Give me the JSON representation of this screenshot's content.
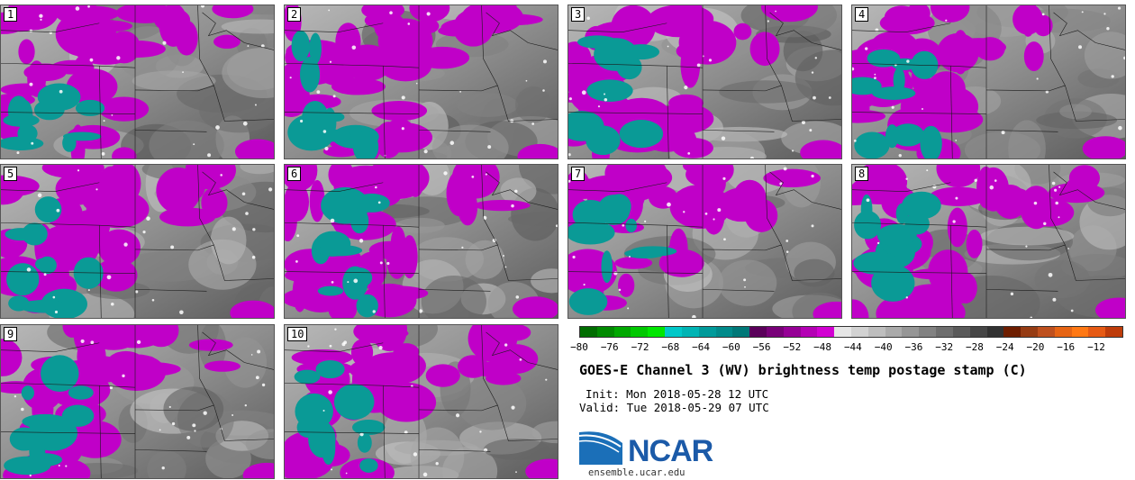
{
  "panels": [
    {
      "label": "1"
    },
    {
      "label": "2"
    },
    {
      "label": "3"
    },
    {
      "label": "4"
    },
    {
      "label": "5"
    },
    {
      "label": "6"
    },
    {
      "label": "7"
    },
    {
      "label": "8"
    },
    {
      "label": "9"
    },
    {
      "label": "10"
    }
  ],
  "colorbar": {
    "colors": [
      "#006d00",
      "#008a00",
      "#00a800",
      "#00c800",
      "#00e600",
      "#00c8c8",
      "#00b4b4",
      "#009a9a",
      "#008a8a",
      "#007878",
      "#5a005a",
      "#780078",
      "#960096",
      "#b400b4",
      "#d200d2",
      "#e6e6e6",
      "#d2d2d2",
      "#bebebe",
      "#aaaaaa",
      "#969696",
      "#828282",
      "#6e6e6e",
      "#5a5a5a",
      "#464646",
      "#323232",
      "#6e1e00",
      "#963c14",
      "#be501e",
      "#e66414",
      "#ff7814",
      "#e65a14",
      "#be3c0a"
    ],
    "ticks": [
      "−80",
      "−76",
      "−72",
      "−68",
      "−64",
      "−60",
      "−56",
      "−52",
      "−48",
      "−44",
      "−40",
      "−36",
      "−32",
      "−28",
      "−24",
      "−20",
      "−16",
      "−12"
    ]
  },
  "title": "GOES-E Channel 3 (WV) brightness temp postage stamp (C)",
  "init": "Init: Mon 2018-05-28 12 UTC",
  "valid": "Valid: Tue 2018-05-29 07 UTC",
  "logo": {
    "text": "NCAR",
    "site": "ensemble.ucar.edu"
  }
}
